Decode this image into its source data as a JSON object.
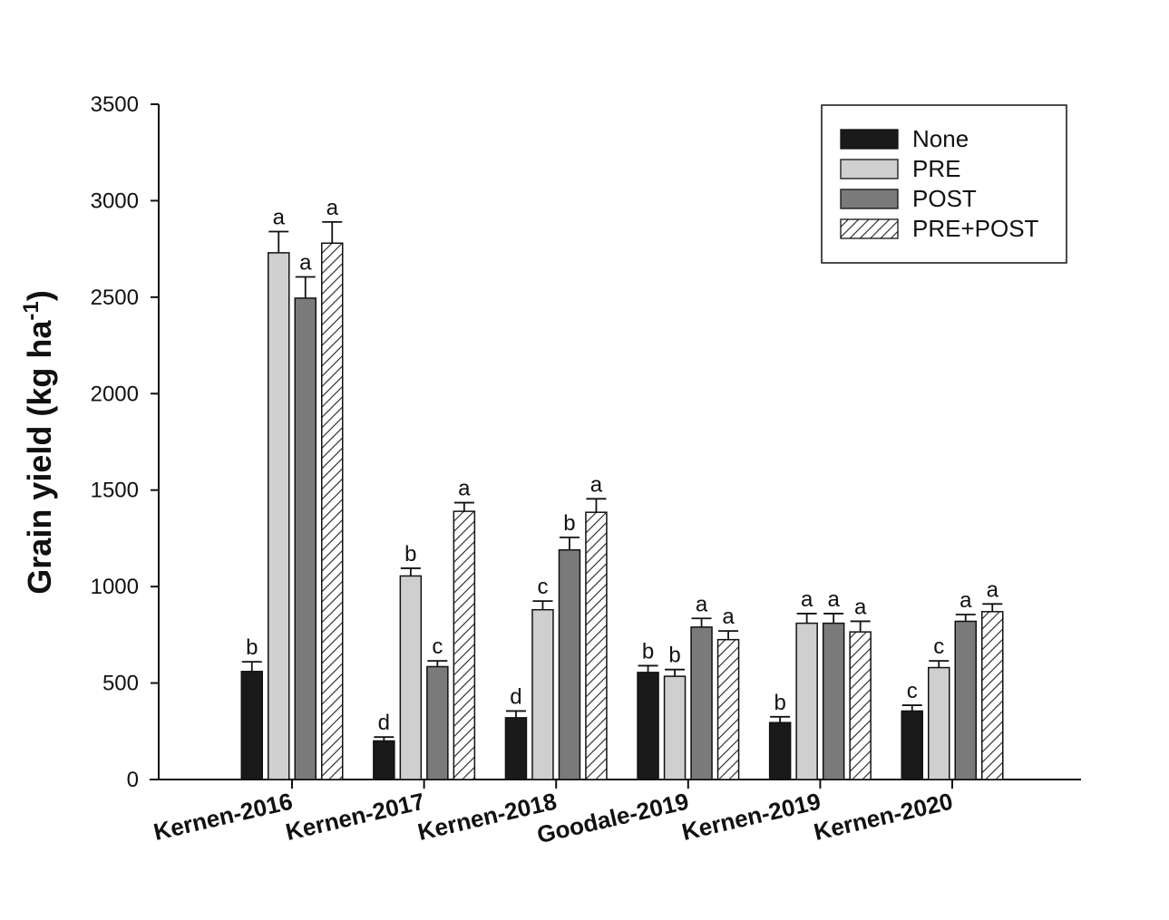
{
  "chart_data": {
    "type": "bar",
    "ylabel": "Grain yield (kg ha",
    "ylabel_sup": "-1",
    "ylabel_close": ")",
    "xlabel": "",
    "ylim": [
      0,
      3500
    ],
    "yticks": [
      0,
      500,
      1000,
      1500,
      2000,
      2500,
      3000,
      3500
    ],
    "categories": [
      "Kernen-2016",
      "Kernen-2017",
      "Kernen-2018",
      "Goodale-2019",
      "Kernen-2019",
      "Kernen-2020"
    ],
    "legend_position": "top-right",
    "series": [
      {
        "name": "None",
        "color": "#1a1a1a",
        "pattern": "solid",
        "values": [
          560,
          200,
          320,
          555,
          295,
          355
        ],
        "errors": [
          50,
          20,
          35,
          35,
          30,
          30
        ],
        "letters": [
          "b",
          "d",
          "d",
          "b",
          "b",
          "c"
        ]
      },
      {
        "name": "PRE",
        "color": "#cfcfcf",
        "pattern": "solid",
        "values": [
          2730,
          1055,
          880,
          535,
          810,
          580
        ],
        "errors": [
          110,
          40,
          45,
          35,
          50,
          35
        ],
        "letters": [
          "a",
          "b",
          "c",
          "b",
          "a",
          "c"
        ]
      },
      {
        "name": "POST",
        "color": "#7a7a7a",
        "pattern": "solid",
        "values": [
          2495,
          585,
          1190,
          790,
          810,
          820
        ],
        "errors": [
          110,
          30,
          65,
          45,
          50,
          35
        ],
        "letters": [
          "a",
          "c",
          "b",
          "a",
          "a",
          "a"
        ]
      },
      {
        "name": "PRE+POST",
        "color": "#e6e6e6",
        "pattern": "hatched",
        "values": [
          2780,
          1390,
          1385,
          725,
          765,
          870
        ],
        "errors": [
          110,
          45,
          70,
          45,
          55,
          40
        ],
        "letters": [
          "a",
          "a",
          "a",
          "a",
          "a",
          "a"
        ]
      }
    ]
  }
}
